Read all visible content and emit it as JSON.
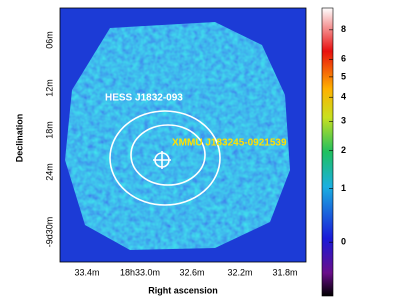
{
  "axes": {
    "x_label": "Right ascension",
    "y_label": "Declination",
    "x_ticks": [
      "33.4m",
      "18h33.0m",
      "32.6m",
      "32.2m",
      "31.8m"
    ],
    "y_ticks": [
      "06m",
      "12m",
      "18m",
      "24m",
      "-9d30m"
    ]
  },
  "annotations": [
    "HESS J1832-093",
    "XMMU J183245-0921539"
  ],
  "colorbar": {
    "ticks": [
      0,
      1,
      2,
      3,
      4,
      5,
      6,
      8
    ],
    "lim": [
      -0.67,
      9.8
    ]
  }
}
